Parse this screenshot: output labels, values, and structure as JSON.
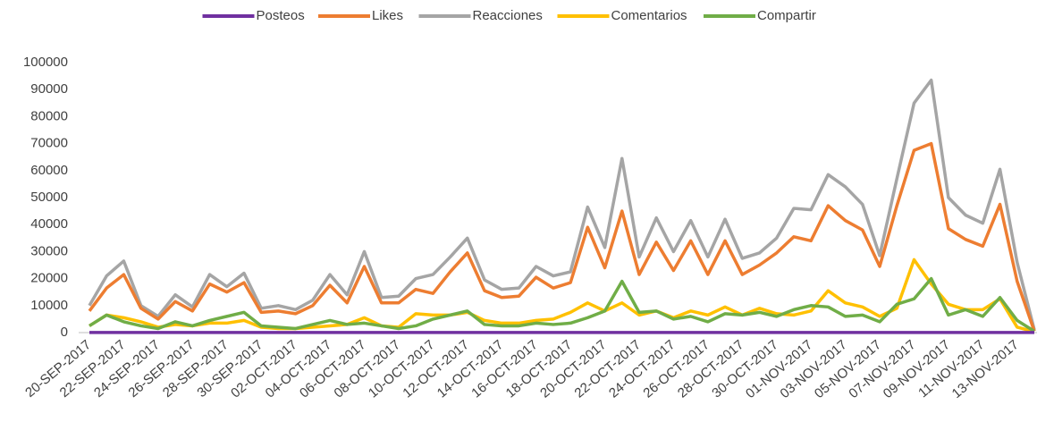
{
  "chart_data": {
    "type": "line",
    "categories": [
      "20-SEP-2017",
      null,
      "22-SEP-2017",
      null,
      "24-SEP-2017",
      null,
      "26-SEP-2017",
      null,
      "28-SEP-2017",
      null,
      "30-SEP-2017",
      null,
      "02-OCT-2017",
      null,
      "04-OCT-2017",
      null,
      "06-OCT-2017",
      null,
      "08-OCT-2017",
      null,
      "10-OCT-2017",
      null,
      "12-OCT-2017",
      null,
      "14-OCT-2017",
      null,
      "16-OCT-2017",
      null,
      "18-OCT-2017",
      null,
      "20-OCT-2017",
      null,
      "22-OCT-2017",
      null,
      "24-OCT-2017",
      null,
      "26-OCT-2017",
      null,
      "28-OCT-2017",
      null,
      "30-OCT-2017",
      null,
      "01-NOV-2017",
      null,
      "03-NOV-2017",
      null,
      "05-NOV-2017",
      null,
      "07-NOV-2017",
      null,
      "09-NOV-2017",
      null,
      "11-NOV-2017",
      null,
      "13-NOV-2017",
      null
    ],
    "series": [
      {
        "name": "Posteos",
        "color": "#7030a0",
        "values": [
          50,
          50,
          50,
          50,
          50,
          50,
          50,
          50,
          50,
          50,
          50,
          50,
          50,
          50,
          50,
          50,
          50,
          50,
          50,
          50,
          50,
          50,
          50,
          50,
          50,
          50,
          50,
          50,
          50,
          50,
          50,
          50,
          50,
          50,
          50,
          50,
          50,
          50,
          50,
          50,
          50,
          50,
          50,
          50,
          50,
          50,
          50,
          50,
          50,
          50,
          50,
          50,
          50,
          50,
          50,
          50
        ]
      },
      {
        "name": "Likes",
        "color": "#ed7d31",
        "values": [
          8000,
          16500,
          21500,
          9000,
          5000,
          11500,
          8000,
          18000,
          15000,
          18500,
          7500,
          8000,
          7000,
          10000,
          17500,
          11000,
          24500,
          11000,
          11000,
          16000,
          14500,
          22500,
          29500,
          15500,
          13000,
          13500,
          20500,
          16500,
          18500,
          39000,
          24000,
          45000,
          21500,
          33500,
          23000,
          34000,
          21500,
          34000,
          21500,
          25000,
          29500,
          35500,
          34000,
          47000,
          41500,
          38000,
          24500,
          47000,
          67500,
          70000,
          38500,
          34500,
          32000,
          47500,
          19000,
          500
        ]
      },
      {
        "name": "Reacciones",
        "color": "#a5a5a5",
        "values": [
          10000,
          21000,
          26500,
          10000,
          6000,
          14000,
          9500,
          21500,
          17000,
          22000,
          9000,
          10000,
          8500,
          12000,
          21500,
          14000,
          30000,
          13000,
          13500,
          20000,
          21500,
          28000,
          35000,
          19500,
          16000,
          16500,
          24500,
          21000,
          22500,
          46500,
          31500,
          64500,
          28000,
          42500,
          30000,
          41500,
          28000,
          42000,
          27500,
          29500,
          35000,
          46000,
          45500,
          58500,
          54000,
          47500,
          28500,
          57000,
          85000,
          93500,
          50000,
          43500,
          40500,
          60500,
          26000,
          1000
        ]
      },
      {
        "name": "Comentarios",
        "color": "#ffc000",
        "values": [
          2500,
          6500,
          5500,
          4000,
          2000,
          3000,
          2500,
          3500,
          3500,
          4500,
          2000,
          1500,
          1500,
          2000,
          2500,
          3000,
          5500,
          2500,
          2000,
          7000,
          6500,
          6500,
          7500,
          4500,
          3500,
          3500,
          4500,
          5000,
          7500,
          11000,
          8000,
          11000,
          6500,
          8000,
          5500,
          8000,
          6500,
          9500,
          6500,
          9000,
          7000,
          6500,
          8000,
          15500,
          11000,
          9500,
          6000,
          9000,
          27000,
          18000,
          10500,
          8500,
          8500,
          12500,
          2000,
          300
        ]
      },
      {
        "name": "Compartir",
        "color": "#70ad47",
        "values": [
          2500,
          6500,
          4000,
          2500,
          1500,
          4000,
          2500,
          4500,
          6000,
          7500,
          2500,
          2000,
          1500,
          3000,
          4500,
          3000,
          3500,
          2500,
          1500,
          2500,
          5000,
          6500,
          8000,
          3000,
          2500,
          2500,
          3500,
          3000,
          3500,
          5500,
          8000,
          19000,
          7500,
          8000,
          5000,
          6000,
          4000,
          7000,
          6500,
          7500,
          6000,
          8500,
          10000,
          9500,
          6000,
          6500,
          4000,
          10500,
          12500,
          20000,
          6500,
          8500,
          6000,
          13000,
          4500,
          500
        ]
      }
    ],
    "ylim": [
      0,
      100000
    ],
    "yticks": [
      0,
      10000,
      20000,
      30000,
      40000,
      50000,
      60000,
      70000,
      80000,
      90000,
      100000
    ],
    "legend": "top",
    "grid": false
  }
}
